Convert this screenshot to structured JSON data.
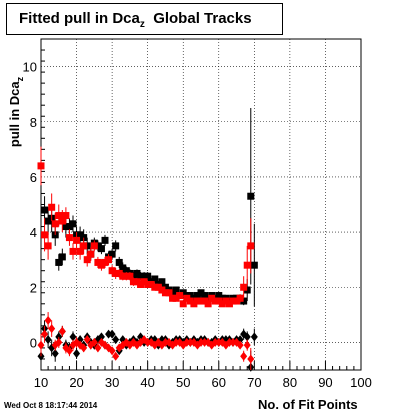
{
  "title": {
    "main": "Fitted pull in Dca",
    "sub": "z",
    "suffix": "Global Tracks"
  },
  "footer": {
    "timestamp": "Wed Oct  8 18:17:44 2014"
  },
  "chart_data": {
    "type": "scatter",
    "xlabel": "No. of Fit Points",
    "ylabel": "pull in Dca",
    "ylabel_sub": "z",
    "xlim": [
      10,
      100
    ],
    "ylim": [
      -1,
      11
    ],
    "x_ticks": [
      10,
      20,
      30,
      40,
      50,
      60,
      70,
      80,
      90,
      100
    ],
    "y_ticks": [
      0,
      2,
      4,
      6,
      8,
      10
    ],
    "grid": true,
    "legend": "none",
    "series": [
      {
        "role": "width-black-squares",
        "color": "#000000",
        "marker": "square",
        "x": [
          11,
          12,
          13,
          14,
          15,
          16,
          17,
          18,
          19,
          20,
          21,
          22,
          23,
          24,
          25,
          26,
          27,
          28,
          29,
          30,
          31,
          32,
          33,
          34,
          35,
          36,
          37,
          38,
          39,
          40,
          41,
          42,
          43,
          44,
          45,
          46,
          47,
          48,
          49,
          50,
          51,
          52,
          53,
          54,
          55,
          56,
          57,
          58,
          59,
          60,
          61,
          62,
          63,
          64,
          65,
          66,
          67,
          68,
          69,
          70
        ],
        "y": [
          4.8,
          4.4,
          4.5,
          3.9,
          2.9,
          3.1,
          4.2,
          4.2,
          4.3,
          3.9,
          3.9,
          3.8,
          3.5,
          3.2,
          3.6,
          3.5,
          3.4,
          3.7,
          3.1,
          3.2,
          3.5,
          2.9,
          2.7,
          2.6,
          2.5,
          2.4,
          2.5,
          2.4,
          2.4,
          2.4,
          2.2,
          2.3,
          2.1,
          2.2,
          2.0,
          1.9,
          1.8,
          1.9,
          1.7,
          1.8,
          1.7,
          1.7,
          1.6,
          1.7,
          1.8,
          1.7,
          1.6,
          1.7,
          1.6,
          1.7,
          1.6,
          1.6,
          1.5,
          1.6,
          1.6,
          1.6,
          1.5,
          1.9,
          5.3,
          2.8
        ],
        "err": [
          0.5,
          0.5,
          0.5,
          0.4,
          0.3,
          0.3,
          0.4,
          0.3,
          0.3,
          0.3,
          0.3,
          0.3,
          0.3,
          0.2,
          0.2,
          0.2,
          0.2,
          0.2,
          0.2,
          0.2,
          0.2,
          0.2,
          0.2,
          0.15,
          0.15,
          0.15,
          0.15,
          0.15,
          0.15,
          0.15,
          0.12,
          0.12,
          0.12,
          0.12,
          0.1,
          0.1,
          0.1,
          0.1,
          0.1,
          0.1,
          0.1,
          0.1,
          0.1,
          0.1,
          0.1,
          0.1,
          0.1,
          0.1,
          0.1,
          0.1,
          0.1,
          0.1,
          0.1,
          0.1,
          0.12,
          0.12,
          0.15,
          0.4,
          3.2,
          1.5
        ]
      },
      {
        "role": "width-red-squares",
        "color": "#ff0000",
        "marker": "square",
        "x": [
          10,
          11,
          12,
          13,
          14,
          15,
          16,
          17,
          18,
          19,
          20,
          21,
          22,
          23,
          24,
          25,
          26,
          27,
          28,
          29,
          30,
          31,
          32,
          33,
          34,
          35,
          36,
          37,
          38,
          39,
          40,
          41,
          42,
          43,
          44,
          45,
          46,
          47,
          48,
          49,
          50,
          51,
          52,
          53,
          54,
          55,
          56,
          57,
          58,
          59,
          60,
          61,
          62,
          63,
          64,
          65,
          66,
          67,
          68,
          69
        ],
        "y": [
          6.4,
          3.9,
          3.5,
          4.9,
          4.3,
          4.6,
          4.4,
          4.6,
          3.8,
          3.3,
          3.7,
          3.3,
          3.5,
          3.0,
          3.2,
          3.5,
          2.9,
          2.8,
          2.9,
          3.0,
          2.6,
          2.5,
          2.5,
          2.4,
          2.4,
          2.4,
          2.2,
          2.2,
          2.1,
          2.2,
          2.1,
          2.1,
          2.0,
          2.0,
          1.9,
          1.8,
          1.8,
          1.6,
          1.6,
          1.7,
          1.4,
          1.6,
          1.5,
          1.4,
          1.5,
          1.5,
          1.5,
          1.4,
          1.6,
          1.5,
          1.5,
          1.4,
          1.5,
          1.4,
          1.5,
          1.5,
          1.6,
          2.0,
          2.8,
          3.5
        ],
        "err": [
          0.7,
          0.6,
          0.5,
          0.5,
          0.4,
          0.4,
          0.4,
          0.3,
          0.3,
          0.3,
          0.3,
          0.3,
          0.3,
          0.25,
          0.25,
          0.2,
          0.2,
          0.2,
          0.2,
          0.2,
          0.2,
          0.2,
          0.15,
          0.15,
          0.15,
          0.15,
          0.15,
          0.12,
          0.12,
          0.12,
          0.12,
          0.12,
          0.1,
          0.1,
          0.1,
          0.1,
          0.1,
          0.1,
          0.1,
          0.1,
          0.1,
          0.1,
          0.1,
          0.1,
          0.1,
          0.1,
          0.1,
          0.1,
          0.1,
          0.1,
          0.1,
          0.1,
          0.1,
          0.1,
          0.12,
          0.12,
          0.15,
          0.4,
          0.7,
          1.0
        ]
      },
      {
        "role": "mean-black-diamonds",
        "color": "#000000",
        "marker": "diamond",
        "x": [
          10,
          11,
          12,
          13,
          14,
          15,
          16,
          17,
          18,
          19,
          20,
          21,
          22,
          23,
          24,
          25,
          26,
          27,
          28,
          29,
          30,
          31,
          32,
          33,
          34,
          35,
          36,
          37,
          38,
          39,
          40,
          41,
          42,
          43,
          44,
          45,
          46,
          47,
          48,
          49,
          50,
          51,
          52,
          53,
          54,
          55,
          56,
          57,
          58,
          59,
          60,
          61,
          62,
          63,
          64,
          65,
          66,
          67,
          68,
          69,
          70
        ],
        "y": [
          -0.5,
          0.5,
          0.1,
          -0.2,
          -0.4,
          0.2,
          0.4,
          -0.1,
          -0.2,
          0.2,
          -0.4,
          0.1,
          -0.1,
          0.2,
          0.0,
          -0.1,
          0.1,
          0.2,
          -0.1,
          0.3,
          0.3,
          0.1,
          -0.3,
          0.1,
          -0.1,
          0.0,
          0.1,
          0.0,
          0.2,
          0.0,
          0.0,
          0.1,
          0.1,
          -0.1,
          0.1,
          0.1,
          -0.1,
          0.0,
          0.1,
          0.1,
          0.0,
          0.1,
          0.0,
          0.1,
          0.0,
          0.1,
          0.1,
          0.0,
          0.0,
          0.1,
          0.0,
          0.1,
          0.1,
          0.1,
          0.0,
          0.1,
          0.1,
          0.3,
          0.2,
          -0.9,
          0.2
        ],
        "err": [
          0.4,
          0.3,
          0.3,
          0.3,
          0.3,
          0.2,
          0.2,
          0.2,
          0.2,
          0.2,
          0.2,
          0.15,
          0.15,
          0.15,
          0.15,
          0.15,
          0.15,
          0.12,
          0.12,
          0.12,
          0.12,
          0.12,
          0.12,
          0.1,
          0.1,
          0.1,
          0.1,
          0.1,
          0.1,
          0.1,
          0.1,
          0.1,
          0.1,
          0.1,
          0.1,
          0.1,
          0.1,
          0.1,
          0.1,
          0.1,
          0.1,
          0.1,
          0.1,
          0.1,
          0.1,
          0.1,
          0.1,
          0.1,
          0.1,
          0.1,
          0.1,
          0.1,
          0.1,
          0.1,
          0.1,
          0.1,
          0.1,
          0.2,
          0.2,
          0.6,
          0.3
        ]
      },
      {
        "role": "mean-red-diamonds",
        "color": "#ff0000",
        "marker": "diamond",
        "x": [
          10,
          11,
          12,
          13,
          14,
          15,
          16,
          17,
          18,
          19,
          20,
          21,
          22,
          23,
          24,
          25,
          26,
          27,
          28,
          29,
          30,
          31,
          32,
          33,
          34,
          35,
          36,
          37,
          38,
          39,
          40,
          41,
          42,
          43,
          44,
          45,
          46,
          47,
          48,
          49,
          50,
          51,
          52,
          53,
          54,
          55,
          56,
          57,
          58,
          59,
          60,
          61,
          62,
          63,
          64,
          65,
          66,
          67,
          68,
          69
        ],
        "y": [
          -0.1,
          0.3,
          0.8,
          0.5,
          -0.1,
          0.0,
          0.4,
          -0.2,
          -0.3,
          -0.1,
          0.0,
          -0.1,
          -0.2,
          0.1,
          -0.1,
          0.0,
          -0.2,
          0.0,
          -0.1,
          -0.2,
          -0.3,
          -0.5,
          -0.2,
          -0.1,
          0.0,
          -0.1,
          0.0,
          -0.1,
          0.0,
          0.1,
          0.0,
          0.0,
          -0.1,
          0.0,
          -0.1,
          0.0,
          0.0,
          -0.1,
          0.0,
          0.0,
          -0.1,
          0.0,
          0.0,
          0.0,
          -0.1,
          0.0,
          0.0,
          0.0,
          -0.1,
          0.0,
          0.0,
          0.0,
          -0.1,
          0.0,
          0.0,
          0.0,
          -0.1,
          -0.5,
          -0.1,
          -0.6
        ],
        "err": [
          0.4,
          0.3,
          0.3,
          0.3,
          0.2,
          0.2,
          0.2,
          0.2,
          0.2,
          0.2,
          0.2,
          0.15,
          0.15,
          0.15,
          0.15,
          0.15,
          0.15,
          0.12,
          0.12,
          0.12,
          0.12,
          0.12,
          0.12,
          0.1,
          0.1,
          0.1,
          0.1,
          0.1,
          0.1,
          0.1,
          0.1,
          0.1,
          0.1,
          0.1,
          0.1,
          0.1,
          0.1,
          0.1,
          0.1,
          0.1,
          0.1,
          0.1,
          0.1,
          0.1,
          0.1,
          0.1,
          0.1,
          0.1,
          0.1,
          0.1,
          0.1,
          0.1,
          0.1,
          0.1,
          0.1,
          0.1,
          0.1,
          0.2,
          0.2,
          0.4
        ]
      }
    ]
  }
}
